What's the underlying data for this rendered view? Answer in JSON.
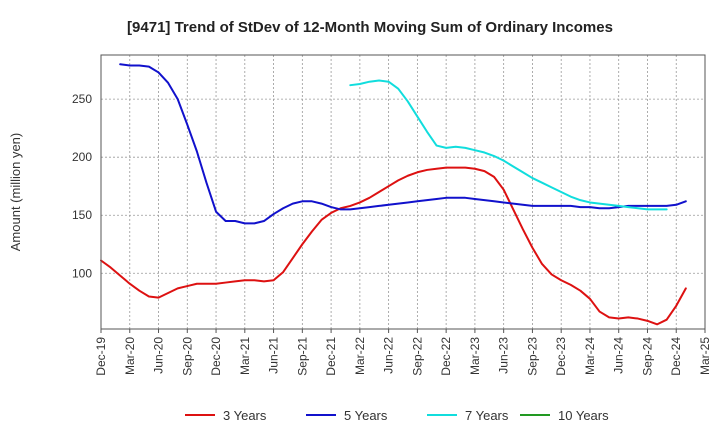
{
  "chart_data": {
    "type": "line",
    "title": "[9471]  Trend of StDev of 12-Month Moving Sum of Ordinary Incomes",
    "ylabel": "Amount (million yen)",
    "xlabel": "",
    "ylim": [
      52,
      288
    ],
    "yticks": [
      100,
      150,
      200,
      250
    ],
    "grid": true,
    "legend_position": "bottom",
    "x_ticks": [
      "Dec-19",
      "Mar-20",
      "Jun-20",
      "Sep-20",
      "Dec-20",
      "Mar-21",
      "Jun-21",
      "Sep-21",
      "Dec-21",
      "Mar-22",
      "Jun-22",
      "Sep-22",
      "Dec-22",
      "Mar-23",
      "Jun-23",
      "Sep-23",
      "Dec-23",
      "Mar-24",
      "Jun-24",
      "Sep-24",
      "Dec-24",
      "Mar-25"
    ],
    "series": [
      {
        "name": "3 Years",
        "color": "#dd1111",
        "values": [
          111,
          105,
          98,
          91,
          85,
          80,
          79,
          83,
          87,
          89,
          91,
          91,
          91,
          92,
          93,
          94,
          94,
          93,
          94,
          101,
          113,
          125,
          136,
          146,
          152,
          156,
          158,
          161,
          165,
          170,
          175,
          180,
          184,
          187,
          189,
          190,
          191,
          191,
          191,
          190,
          188,
          183,
          172,
          155,
          138,
          122,
          108,
          99,
          94,
          90,
          85,
          78,
          67,
          62,
          61,
          62,
          61,
          59,
          56,
          60,
          72,
          87
        ]
      },
      {
        "name": "5 Years",
        "color": "#1111cc",
        "values": [
          null,
          null,
          280,
          279,
          279,
          278,
          273,
          264,
          250,
          228,
          205,
          178,
          153,
          145,
          145,
          143,
          143,
          145,
          151,
          156,
          160,
          162,
          162,
          160,
          157,
          155,
          155,
          156,
          157,
          158,
          159,
          160,
          161,
          162,
          163,
          164,
          165,
          165,
          165,
          164,
          163,
          162,
          161,
          160,
          159,
          158,
          158,
          158,
          158,
          158,
          157,
          157,
          156,
          156,
          157,
          158,
          158,
          158,
          158,
          158,
          159,
          162
        ]
      },
      {
        "name": "7 Years",
        "color": "#11dddd",
        "values": [
          null,
          null,
          null,
          null,
          null,
          null,
          null,
          null,
          null,
          null,
          null,
          null,
          null,
          null,
          null,
          null,
          null,
          null,
          null,
          null,
          null,
          null,
          null,
          null,
          null,
          null,
          262,
          263,
          265,
          266,
          265,
          259,
          248,
          235,
          222,
          210,
          208,
          209,
          208,
          206,
          204,
          201,
          197,
          192,
          187,
          182,
          178,
          174,
          170,
          166,
          163,
          161,
          160,
          159,
          158,
          157,
          156,
          155,
          155,
          155,
          null,
          null
        ]
      },
      {
        "name": "10 Years",
        "color": "#229922",
        "values": []
      }
    ]
  }
}
